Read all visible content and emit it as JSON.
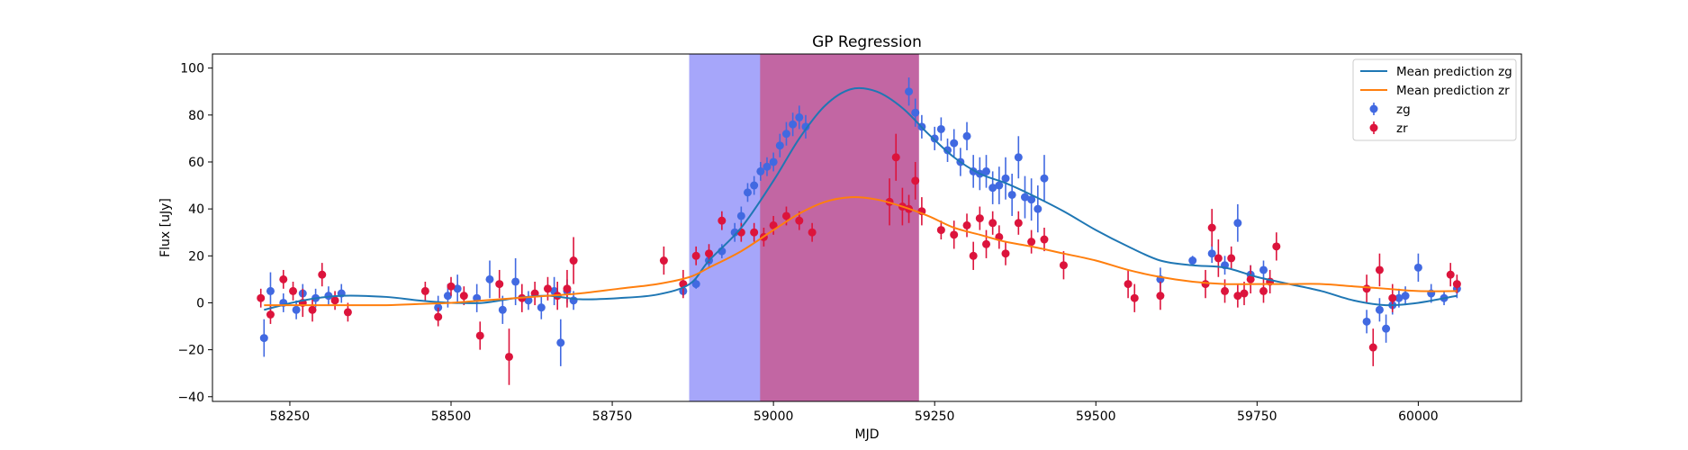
{
  "chart_data": {
    "type": "scatter",
    "title": "GP Regression",
    "xlabel": "MJD",
    "ylabel": "Flux [uJy]",
    "xlim": [
      58130,
      60160
    ],
    "ylim": [
      -42,
      106
    ],
    "xticks": [
      58250,
      58500,
      58750,
      59000,
      59250,
      59500,
      59750,
      60000
    ],
    "yticks": [
      -40,
      -20,
      0,
      20,
      40,
      60,
      80,
      100
    ],
    "grid": false,
    "legend_position": "top-right",
    "shaded_regions": [
      {
        "x0": 58870,
        "x1": 58980,
        "color": "#a6a6fa"
      },
      {
        "x0": 58980,
        "x1": 59225,
        "color": "#c266a3"
      }
    ],
    "colors": {
      "zg_line": "#1f77b4",
      "zr_line": "#ff7f0e",
      "zg_points": "#4169e1",
      "zr_points": "#dc143c"
    },
    "series": [
      {
        "name": "Mean prediction zg",
        "kind": "line",
        "x": [
          58210,
          58270,
          58330,
          58400,
          58450,
          58500,
          58550,
          58600,
          58650,
          58700,
          58760,
          58820,
          58870,
          58900,
          58950,
          59000,
          59040,
          59080,
          59120,
          59160,
          59200,
          59240,
          59280,
          59320,
          59360,
          59400,
          59450,
          59500,
          59550,
          59600,
          59650,
          59700,
          59750,
          59800,
          59850,
          59900,
          59950,
          60000,
          60060
        ],
        "y": [
          -3,
          1,
          3,
          2.5,
          1,
          0,
          0,
          2,
          3,
          1.5,
          2,
          3.5,
          8,
          18,
          32,
          52,
          70,
          84,
          91,
          90,
          83,
          72,
          62,
          55,
          51,
          46,
          39,
          31,
          24,
          18,
          16,
          15,
          11,
          8,
          5,
          1,
          -1,
          0,
          3
        ]
      },
      {
        "name": "Mean prediction zr",
        "kind": "line",
        "x": [
          58210,
          58270,
          58330,
          58400,
          58450,
          58500,
          58550,
          58600,
          58650,
          58700,
          58760,
          58820,
          58870,
          58900,
          58950,
          59000,
          59040,
          59080,
          59120,
          59160,
          59200,
          59240,
          59280,
          59320,
          59360,
          59400,
          59450,
          59500,
          59550,
          59600,
          59650,
          59700,
          59750,
          59800,
          59850,
          59900,
          59950,
          60000,
          60060
        ],
        "y": [
          -1,
          -1,
          -1,
          -1,
          -0.5,
          0,
          1,
          2,
          3,
          4,
          6,
          8,
          11,
          15,
          22,
          31,
          38,
          43,
          45,
          44,
          41,
          37,
          32,
          29,
          26,
          24,
          21,
          18,
          14,
          11,
          9,
          8,
          8,
          8,
          8,
          7,
          6,
          5,
          5
        ]
      },
      {
        "name": "zg",
        "kind": "points",
        "x": [
          58210,
          58220,
          58240,
          58260,
          58270,
          58290,
          58310,
          58330,
          58480,
          58495,
          58510,
          58540,
          58560,
          58580,
          58600,
          58620,
          58640,
          58660,
          58670,
          58680,
          58690,
          58860,
          58880,
          58900,
          58920,
          58940,
          58950,
          58960,
          58970,
          58980,
          58990,
          59000,
          59010,
          59020,
          59030,
          59040,
          59050,
          59210,
          59220,
          59230,
          59250,
          59260,
          59270,
          59280,
          59290,
          59300,
          59310,
          59320,
          59330,
          59340,
          59350,
          59360,
          59370,
          59380,
          59390,
          59400,
          59410,
          59420,
          59600,
          59650,
          59680,
          59700,
          59720,
          59740,
          59760,
          59920,
          59940,
          59950,
          59960,
          59970,
          59980,
          60000,
          60020,
          60040,
          60060
        ],
        "y": [
          -15,
          5,
          0,
          -3,
          4,
          2,
          3,
          4,
          -2,
          3,
          6,
          2,
          10,
          -3,
          9,
          1,
          -2,
          5,
          -17,
          5,
          1,
          5,
          8,
          18,
          22,
          30,
          37,
          47,
          50,
          56,
          58,
          60,
          67,
          72,
          76,
          79,
          75,
          90,
          81,
          75,
          70,
          74,
          65,
          68,
          60,
          71,
          56,
          55,
          56,
          49,
          50,
          53,
          46,
          62,
          45,
          44,
          40,
          53,
          10,
          18,
          21,
          16,
          34,
          12,
          14,
          -8,
          -3,
          -11,
          -1,
          2,
          3,
          15,
          4,
          2,
          6
        ],
        "yerr": [
          8,
          8,
          4,
          4,
          4,
          4,
          4,
          4,
          5,
          5,
          6,
          6,
          8,
          6,
          10,
          4,
          5,
          6,
          10,
          5,
          4,
          2,
          2,
          3,
          3,
          4,
          4,
          4,
          4,
          4,
          4,
          4,
          5,
          5,
          5,
          5,
          5,
          6,
          6,
          5,
          5,
          5,
          5,
          6,
          6,
          6,
          7,
          7,
          7,
          7,
          8,
          9,
          9,
          9,
          9,
          9,
          10,
          10,
          5,
          2,
          4,
          4,
          8,
          4,
          4,
          5,
          5,
          6,
          4,
          4,
          4,
          6,
          4,
          3,
          4
        ]
      },
      {
        "name": "zr",
        "kind": "points",
        "x": [
          58205,
          58220,
          58240,
          58255,
          58270,
          58285,
          58300,
          58320,
          58340,
          58460,
          58480,
          58500,
          58520,
          58545,
          58575,
          58590,
          58610,
          58630,
          58650,
          58665,
          58680,
          58690,
          58830,
          58860,
          58880,
          58900,
          58920,
          58950,
          58970,
          58985,
          59000,
          59020,
          59040,
          59060,
          59180,
          59190,
          59200,
          59210,
          59220,
          59230,
          59260,
          59280,
          59300,
          59310,
          59320,
          59330,
          59340,
          59350,
          59360,
          59380,
          59400,
          59420,
          59450,
          59550,
          59560,
          59600,
          59670,
          59680,
          59690,
          59700,
          59710,
          59720,
          59730,
          59740,
          59760,
          59770,
          59780,
          59920,
          59930,
          59940,
          59960,
          60050,
          60060
        ],
        "y": [
          2,
          -5,
          10,
          5,
          0,
          -3,
          12,
          1,
          -4,
          5,
          -6,
          7,
          3,
          -14,
          8,
          -23,
          2,
          4,
          6,
          3,
          6,
          18,
          18,
          8,
          20,
          21,
          35,
          30,
          30,
          28,
          33,
          37,
          35,
          30,
          43,
          62,
          41,
          40,
          52,
          39,
          31,
          29,
          33,
          20,
          36,
          25,
          34,
          28,
          21,
          34,
          26,
          27,
          16,
          8,
          2,
          3,
          8,
          32,
          19,
          5,
          19,
          3,
          4,
          10,
          5,
          9,
          24,
          6,
          -19,
          14,
          2,
          12,
          8
        ],
        "yerr": [
          4,
          4,
          4,
          4,
          6,
          5,
          5,
          4,
          4,
          4,
          4,
          4,
          4,
          6,
          6,
          12,
          6,
          5,
          5,
          6,
          8,
          10,
          6,
          6,
          4,
          4,
          4,
          4,
          4,
          4,
          4,
          4,
          4,
          4,
          10,
          10,
          8,
          6,
          8,
          6,
          4,
          6,
          5,
          6,
          5,
          6,
          5,
          5,
          5,
          5,
          5,
          5,
          6,
          6,
          6,
          6,
          6,
          8,
          8,
          5,
          5,
          5,
          5,
          6,
          5,
          5,
          6,
          6,
          8,
          7,
          6,
          5,
          4
        ]
      }
    ]
  }
}
